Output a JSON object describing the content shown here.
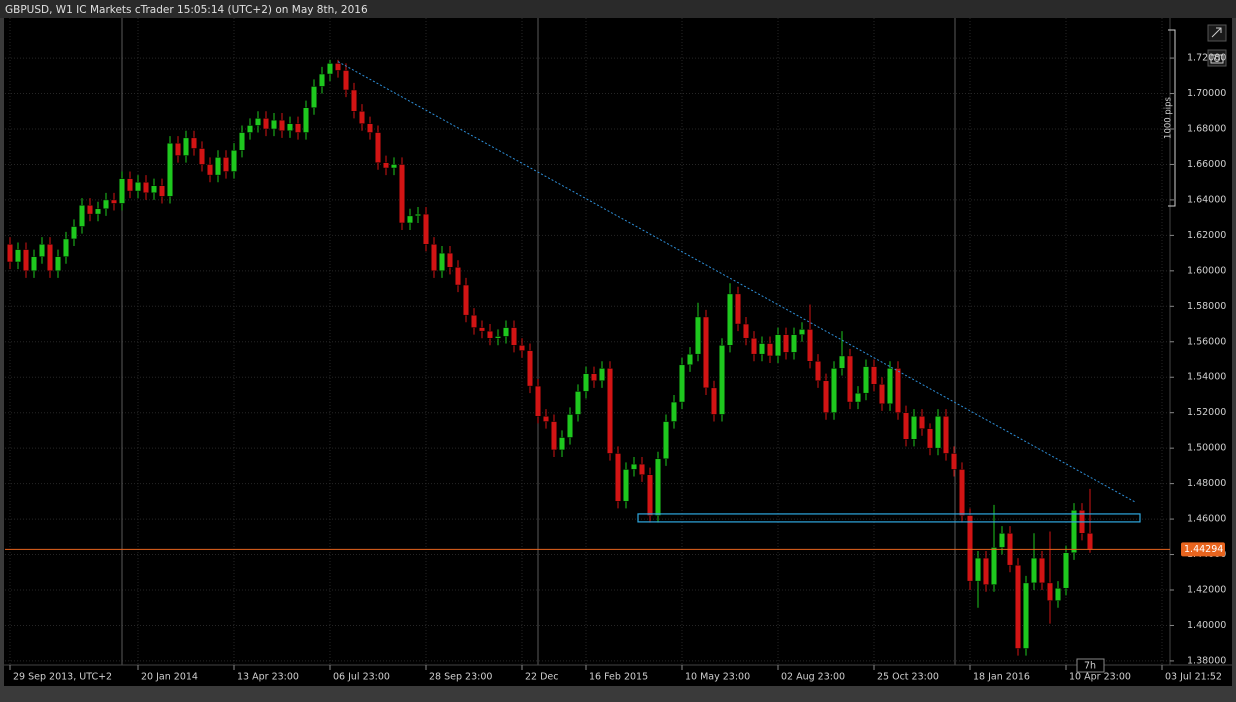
{
  "chart_data": {
    "type": "candlestick",
    "title": "GBPUSD, W1 IC Markets cTrader 15:05:14 (UTC+2) on May 8th, 2016",
    "open": [
      1.615,
      1.605,
      1.612,
      1.6,
      1.608,
      1.615,
      1.6,
      1.608,
      1.618,
      1.625,
      1.637,
      1.632,
      1.635,
      1.64,
      1.638,
      1.652,
      1.645,
      1.65,
      1.644,
      1.648,
      1.642,
      1.672,
      1.665,
      1.675,
      1.669,
      1.66,
      1.654,
      1.664,
      1.656,
      1.668,
      1.678,
      1.682,
      1.686,
      1.68,
      1.685,
      1.679,
      1.683,
      1.678,
      1.692,
      1.704,
      1.711,
      1.717,
      1.713,
      1.702,
      1.69,
      1.683,
      1.678,
      1.661,
      1.658,
      1.66,
      1.627,
      1.631,
      1.632,
      1.615,
      1.6,
      1.61,
      1.602,
      1.592,
      1.575,
      1.568,
      1.566,
      1.562,
      1.563,
      1.568,
      1.558,
      1.555,
      1.535,
      1.518,
      1.515,
      1.499,
      1.506,
      1.519,
      1.532,
      1.542,
      1.538,
      1.545,
      1.497,
      1.47,
      1.488,
      1.491,
      1.485,
      1.462,
      1.494,
      1.515,
      1.526,
      1.547,
      1.553,
      1.574,
      1.534,
      1.519,
      1.558,
      1.587,
      1.57,
      1.562,
      1.553,
      1.559,
      1.552,
      1.564,
      1.554,
      1.564,
      1.567,
      1.549,
      1.538,
      1.52,
      1.545,
      1.552,
      1.526,
      1.531,
      1.546,
      1.536,
      1.525,
      1.545,
      1.52,
      1.505,
      1.518,
      1.511,
      1.5,
      1.518,
      1.497,
      1.488,
      1.462,
      1.425,
      1.438,
      1.423,
      1.444,
      1.452,
      1.434,
      1.387,
      1.424,
      1.438,
      1.424,
      1.414,
      1.421,
      1.441,
      1.465,
      1.452
    ],
    "high": [
      1.619,
      1.616,
      1.616,
      1.612,
      1.619,
      1.619,
      1.612,
      1.622,
      1.629,
      1.641,
      1.641,
      1.639,
      1.644,
      1.644,
      1.656,
      1.656,
      1.654,
      1.654,
      1.652,
      1.652,
      1.676,
      1.676,
      1.679,
      1.679,
      1.673,
      1.664,
      1.668,
      1.668,
      1.672,
      1.682,
      1.686,
      1.69,
      1.69,
      1.689,
      1.689,
      1.687,
      1.687,
      1.696,
      1.708,
      1.715,
      1.719,
      1.719,
      1.717,
      1.706,
      1.694,
      1.687,
      1.682,
      1.665,
      1.664,
      1.664,
      1.635,
      1.636,
      1.636,
      1.619,
      1.614,
      1.614,
      1.606,
      1.596,
      1.579,
      1.572,
      1.57,
      1.567,
      1.572,
      1.572,
      1.562,
      1.559,
      1.539,
      1.522,
      1.519,
      1.51,
      1.523,
      1.536,
      1.546,
      1.546,
      1.549,
      1.549,
      1.501,
      1.492,
      1.495,
      1.495,
      1.489,
      1.498,
      1.519,
      1.53,
      1.551,
      1.557,
      1.582,
      1.578,
      1.538,
      1.562,
      1.593,
      1.591,
      1.574,
      1.566,
      1.563,
      1.563,
      1.568,
      1.568,
      1.568,
      1.571,
      1.581,
      1.553,
      1.542,
      1.549,
      1.566,
      1.556,
      1.535,
      1.55,
      1.55,
      1.54,
      1.549,
      1.549,
      1.524,
      1.522,
      1.522,
      1.514,
      1.522,
      1.522,
      1.501,
      1.492,
      1.466,
      1.442,
      1.442,
      1.468,
      1.456,
      1.456,
      1.438,
      1.428,
      1.452,
      1.442,
      1.453,
      1.425,
      1.445,
      1.469,
      1.469,
      1.477
    ],
    "low": [
      1.601,
      1.601,
      1.596,
      1.596,
      1.604,
      1.596,
      1.596,
      1.604,
      1.614,
      1.621,
      1.628,
      1.628,
      1.631,
      1.634,
      1.634,
      1.641,
      1.641,
      1.64,
      1.64,
      1.638,
      1.638,
      1.661,
      1.661,
      1.665,
      1.656,
      1.65,
      1.65,
      1.652,
      1.652,
      1.664,
      1.674,
      1.678,
      1.676,
      1.676,
      1.675,
      1.675,
      1.674,
      1.674,
      1.688,
      1.7,
      1.707,
      1.709,
      1.698,
      1.686,
      1.679,
      1.674,
      1.657,
      1.654,
      1.654,
      1.623,
      1.623,
      1.627,
      1.611,
      1.596,
      1.596,
      1.598,
      1.588,
      1.571,
      1.564,
      1.562,
      1.558,
      1.558,
      1.559,
      1.554,
      1.551,
      1.531,
      1.514,
      1.511,
      1.495,
      1.495,
      1.502,
      1.515,
      1.528,
      1.534,
      1.534,
      1.493,
      1.466,
      1.466,
      1.484,
      1.481,
      1.458,
      1.458,
      1.49,
      1.511,
      1.522,
      1.543,
      1.549,
      1.53,
      1.515,
      1.515,
      1.554,
      1.566,
      1.558,
      1.549,
      1.549,
      1.548,
      1.548,
      1.55,
      1.55,
      1.56,
      1.545,
      1.534,
      1.516,
      1.516,
      1.541,
      1.522,
      1.522,
      1.527,
      1.532,
      1.521,
      1.521,
      1.516,
      1.501,
      1.501,
      1.507,
      1.496,
      1.496,
      1.493,
      1.484,
      1.458,
      1.42,
      1.41,
      1.419,
      1.419,
      1.44,
      1.43,
      1.383,
      1.383,
      1.42,
      1.42,
      1.401,
      1.41,
      1.417,
      1.437,
      1.448,
      1.441
    ],
    "close": [
      1.605,
      1.612,
      1.6,
      1.608,
      1.615,
      1.6,
      1.608,
      1.618,
      1.625,
      1.637,
      1.632,
      1.635,
      1.64,
      1.638,
      1.652,
      1.645,
      1.65,
      1.644,
      1.648,
      1.642,
      1.672,
      1.665,
      1.675,
      1.669,
      1.66,
      1.654,
      1.664,
      1.656,
      1.668,
      1.678,
      1.682,
      1.686,
      1.68,
      1.685,
      1.679,
      1.683,
      1.678,
      1.692,
      1.704,
      1.711,
      1.717,
      1.713,
      1.702,
      1.69,
      1.683,
      1.678,
      1.661,
      1.658,
      1.66,
      1.627,
      1.631,
      1.632,
      1.615,
      1.6,
      1.61,
      1.602,
      1.592,
      1.575,
      1.568,
      1.566,
      1.562,
      1.563,
      1.568,
      1.558,
      1.555,
      1.535,
      1.518,
      1.515,
      1.499,
      1.506,
      1.519,
      1.532,
      1.542,
      1.538,
      1.545,
      1.497,
      1.47,
      1.488,
      1.491,
      1.485,
      1.462,
      1.494,
      1.515,
      1.526,
      1.547,
      1.553,
      1.574,
      1.534,
      1.519,
      1.558,
      1.587,
      1.57,
      1.562,
      1.553,
      1.559,
      1.552,
      1.564,
      1.554,
      1.564,
      1.567,
      1.549,
      1.538,
      1.52,
      1.545,
      1.552,
      1.526,
      1.531,
      1.546,
      1.536,
      1.525,
      1.545,
      1.52,
      1.505,
      1.518,
      1.511,
      1.5,
      1.518,
      1.497,
      1.488,
      1.462,
      1.425,
      1.438,
      1.423,
      1.444,
      1.452,
      1.434,
      1.387,
      1.424,
      1.438,
      1.424,
      1.414,
      1.421,
      1.441,
      1.465,
      1.452,
      1.4429
    ],
    "up_color": "#1ec81e",
    "down_color": "#d21414",
    "xlim": [
      -0.625,
      145
    ],
    "xticks": [
      {
        "value": 0,
        "label": "29 Sep 2013, UTC+2"
      },
      {
        "value": 16,
        "label": "20 Jan 2014"
      },
      {
        "value": 28,
        "label": "13 Apr 23:00"
      },
      {
        "value": 40,
        "label": "06 Jul 23:00"
      },
      {
        "value": 52,
        "label": "28 Sep 23:00"
      },
      {
        "value": 64,
        "label": "22 Dec"
      },
      {
        "value": 72,
        "label": "16 Feb 2015"
      },
      {
        "value": 84,
        "label": "10 May 23:00"
      },
      {
        "value": 96,
        "label": "02 Aug 23:00"
      },
      {
        "value": 108,
        "label": "25 Oct 23:00"
      },
      {
        "value": 120,
        "label": "18 Jan 2016"
      },
      {
        "value": 132,
        "label": "10 Apr 23:00"
      },
      {
        "value": 144,
        "label": "03 Jul 21:52"
      }
    ],
    "ylim": [
      1.3777,
      1.7426
    ],
    "yticks": [
      {
        "value": 1.38,
        "label": "1.38000"
      },
      {
        "value": 1.4,
        "label": "1.40000"
      },
      {
        "value": 1.42,
        "label": "1.42000"
      },
      {
        "value": 1.44,
        "label": "1.44000"
      },
      {
        "value": 1.46,
        "label": "1.46000"
      },
      {
        "value": 1.48,
        "label": "1.48000"
      },
      {
        "value": 1.5,
        "label": "1.50000"
      },
      {
        "value": 1.52,
        "label": "1.52000"
      },
      {
        "value": 1.54,
        "label": "1.54000"
      },
      {
        "value": 1.56,
        "label": "1.56000"
      },
      {
        "value": 1.58,
        "label": "1.58000"
      },
      {
        "value": 1.6,
        "label": "1.60000"
      },
      {
        "value": 1.62,
        "label": "1.62000"
      },
      {
        "value": 1.64,
        "label": "1.64000"
      },
      {
        "value": 1.66,
        "label": "1.66000"
      },
      {
        "value": 1.68,
        "label": "1.68000"
      },
      {
        "value": 1.7,
        "label": "1.70000"
      },
      {
        "value": 1.72,
        "label": "1.72000"
      }
    ],
    "grid": true,
    "current_price": 1.44294,
    "current_price_color": "#e8641e",
    "trendline": {
      "x": [
        41,
        140.6
      ],
      "y": [
        1.718,
        1.4697
      ],
      "color": "#2e8fd8"
    },
    "zone": {
      "x": [
        78.5,
        141.25
      ],
      "y": [
        1.4584,
        1.4629
      ],
      "color": "#2ea8e0"
    },
    "scale_label": "1000 pips",
    "countdown": "7h"
  }
}
